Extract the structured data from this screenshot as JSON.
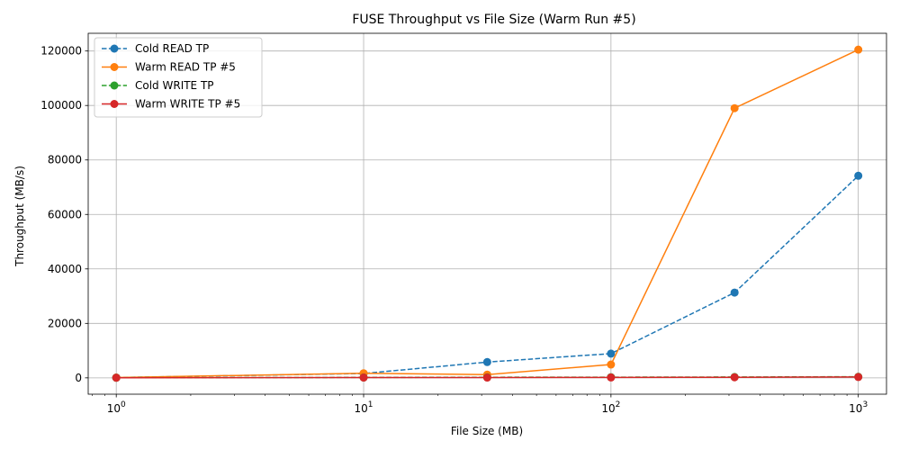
{
  "chart_data": {
    "type": "line",
    "title": "FUSE Throughput vs File Size (Warm Run #5)",
    "xlabel": "File Size (MB)",
    "ylabel": "Throughput (MB/s)",
    "xscale": "log",
    "xlim": [
      0.77,
      1300
    ],
    "ylim": [
      -6000,
      126500
    ],
    "yticks": [
      0,
      20000,
      40000,
      60000,
      80000,
      100000,
      120000
    ],
    "xticks": [
      {
        "value": 1,
        "base": "10",
        "exp": "0"
      },
      {
        "value": 10,
        "base": "10",
        "exp": "1"
      },
      {
        "value": 100,
        "base": "10",
        "exp": "2"
      },
      {
        "value": 1000,
        "base": "10",
        "exp": "3"
      }
    ],
    "grid": true,
    "legend": "top-left",
    "x": [
      1,
      10,
      31.6,
      100,
      316,
      1000
    ],
    "series": [
      {
        "name": "Cold READ TP",
        "color": "#1f77b4",
        "dash": true,
        "values": [
          100,
          1600,
          5800,
          8900,
          31300,
          74200
        ]
      },
      {
        "name": "Warm READ TP #5",
        "color": "#ff7f0e",
        "dash": false,
        "values": [
          100,
          1700,
          1200,
          4900,
          99000,
          120500
        ]
      },
      {
        "name": "Cold WRITE TP",
        "color": "#2ca02c",
        "dash": true,
        "values": [
          50,
          150,
          200,
          250,
          300,
          400
        ]
      },
      {
        "name": "Warm WRITE TP #5",
        "color": "#d62728",
        "dash": false,
        "values": [
          50,
          100,
          100,
          150,
          200,
          300
        ]
      }
    ]
  }
}
